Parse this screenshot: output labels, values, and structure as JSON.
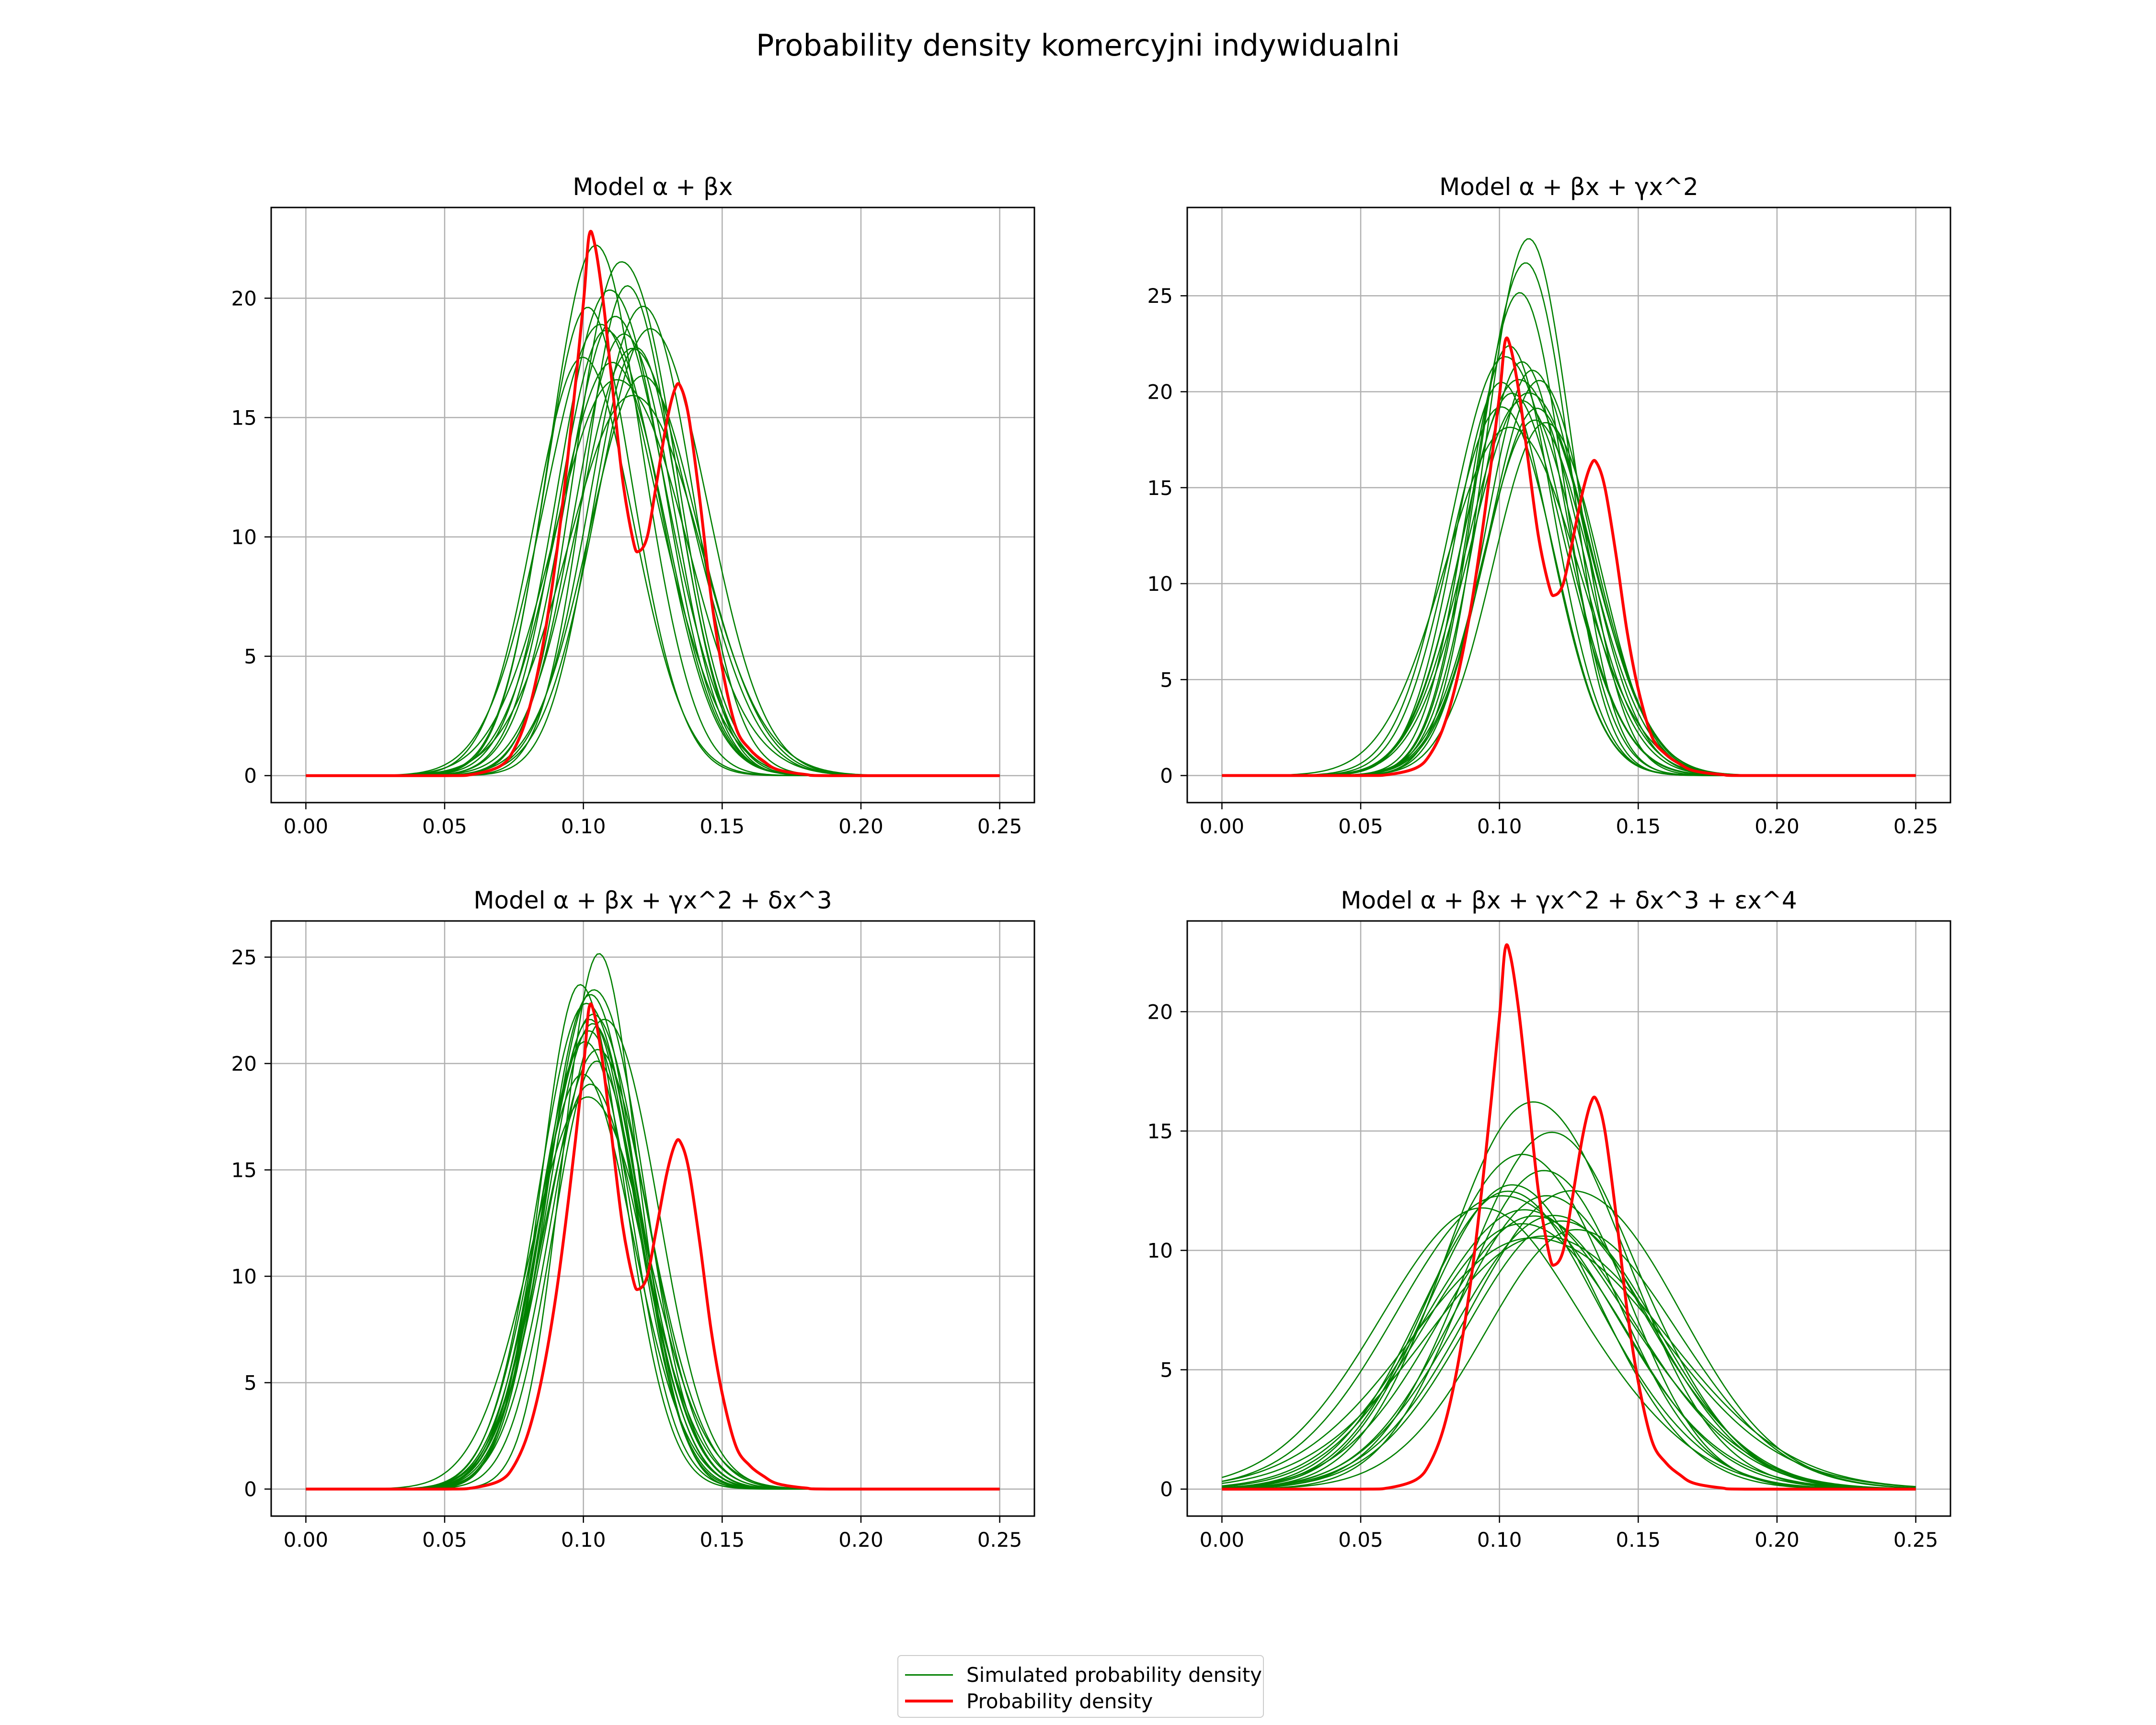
{
  "suptitle": "Probability density komercyjni indywidualni",
  "legend": {
    "entries": [
      {
        "label": "Simulated probability density",
        "color": "#008000"
      },
      {
        "label": "Probability density",
        "color": "#ff0000"
      }
    ]
  },
  "chart_data": [
    {
      "type": "line",
      "title": "Model α + βx",
      "xlim": [
        -0.0125,
        0.2625
      ],
      "ylim": [
        -1.13,
        23.8
      ],
      "xticks": [
        0.0,
        0.05,
        0.1,
        0.15,
        0.2,
        0.25
      ],
      "xtick_labels": [
        "0.00",
        "0.05",
        "0.10",
        "0.15",
        "0.20",
        "0.25"
      ],
      "yticks": [
        0,
        5,
        10,
        15,
        20
      ],
      "ytick_labels": [
        "0",
        "5",
        "10",
        "15",
        "20"
      ],
      "grid": true,
      "real_series": {
        "name": "Probability density",
        "points": [
          [
            0,
            0
          ],
          [
            0.05,
            0
          ],
          [
            0.06,
            0.05
          ],
          [
            0.07,
            0.4
          ],
          [
            0.075,
            1.1
          ],
          [
            0.08,
            2.6
          ],
          [
            0.085,
            5.2
          ],
          [
            0.09,
            9
          ],
          [
            0.095,
            14
          ],
          [
            0.1,
            19.8
          ],
          [
            0.102,
            22.6
          ],
          [
            0.104,
            22.3
          ],
          [
            0.107,
            20
          ],
          [
            0.11,
            16.8
          ],
          [
            0.114,
            12.5
          ],
          [
            0.118,
            9.8
          ],
          [
            0.12,
            9.4
          ],
          [
            0.123,
            10
          ],
          [
            0.126,
            12
          ],
          [
            0.13,
            14.8
          ],
          [
            0.133,
            16.2
          ],
          [
            0.135,
            16.3
          ],
          [
            0.138,
            15
          ],
          [
            0.142,
            11.5
          ],
          [
            0.146,
            7.5
          ],
          [
            0.15,
            4.5
          ],
          [
            0.155,
            2
          ],
          [
            0.16,
            1.1
          ],
          [
            0.165,
            0.6
          ],
          [
            0.17,
            0.25
          ],
          [
            0.18,
            0.05
          ],
          [
            0.19,
            0
          ],
          [
            0.25,
            0
          ]
        ]
      },
      "simulated_series": [
        {
          "center": 0.108,
          "sigma": 0.0185,
          "peak": 18.6
        },
        {
          "center": 0.113,
          "sigma": 0.017,
          "peak": 21.3
        },
        {
          "center": 0.118,
          "sigma": 0.019,
          "peak": 18.0
        },
        {
          "center": 0.105,
          "sigma": 0.016,
          "peak": 22.4
        },
        {
          "center": 0.121,
          "sigma": 0.0175,
          "peak": 19.5
        },
        {
          "center": 0.11,
          "sigma": 0.02,
          "peak": 17.2
        },
        {
          "center": 0.102,
          "sigma": 0.0175,
          "peak": 19.8
        },
        {
          "center": 0.116,
          "sigma": 0.0165,
          "peak": 20.6
        },
        {
          "center": 0.111,
          "sigma": 0.0215,
          "peak": 16.4
        },
        {
          "center": 0.124,
          "sigma": 0.018,
          "peak": 18.7
        },
        {
          "center": 0.107,
          "sigma": 0.0195,
          "peak": 19.1
        },
        {
          "center": 0.119,
          "sigma": 0.016,
          "peak": 17.9
        },
        {
          "center": 0.114,
          "sigma": 0.0185,
          "peak": 18.3
        },
        {
          "center": 0.1,
          "sigma": 0.019,
          "peak": 17.6
        },
        {
          "center": 0.122,
          "sigma": 0.02,
          "peak": 16.9
        },
        {
          "center": 0.109,
          "sigma": 0.017,
          "peak": 20.2
        },
        {
          "center": 0.117,
          "sigma": 0.021,
          "peak": 15.8
        },
        {
          "center": 0.112,
          "sigma": 0.0178,
          "peak": 19.4
        }
      ]
    },
    {
      "type": "line",
      "title": "Model α + βx + γx^2",
      "xlim": [
        -0.0125,
        0.2625
      ],
      "ylim": [
        -1.41,
        29.6
      ],
      "xticks": [
        0.0,
        0.05,
        0.1,
        0.15,
        0.2,
        0.25
      ],
      "xtick_labels": [
        "0.00",
        "0.05",
        "0.10",
        "0.15",
        "0.20",
        "0.25"
      ],
      "yticks": [
        0,
        5,
        10,
        15,
        20,
        25
      ],
      "ytick_labels": [
        "0",
        "5",
        "10",
        "15",
        "20",
        "25"
      ],
      "grid": true,
      "real_series": {
        "name": "Probability density",
        "points": [
          [
            0,
            0
          ],
          [
            0.05,
            0
          ],
          [
            0.06,
            0.05
          ],
          [
            0.07,
            0.4
          ],
          [
            0.075,
            1.1
          ],
          [
            0.08,
            2.6
          ],
          [
            0.085,
            5.2
          ],
          [
            0.09,
            9
          ],
          [
            0.095,
            14
          ],
          [
            0.1,
            19.8
          ],
          [
            0.102,
            22.6
          ],
          [
            0.104,
            22.3
          ],
          [
            0.107,
            20
          ],
          [
            0.11,
            16.8
          ],
          [
            0.114,
            12.5
          ],
          [
            0.118,
            9.8
          ],
          [
            0.12,
            9.4
          ],
          [
            0.123,
            10
          ],
          [
            0.126,
            12
          ],
          [
            0.13,
            14.8
          ],
          [
            0.133,
            16.2
          ],
          [
            0.135,
            16.3
          ],
          [
            0.138,
            15
          ],
          [
            0.142,
            11.5
          ],
          [
            0.146,
            7.5
          ],
          [
            0.15,
            4.5
          ],
          [
            0.155,
            2
          ],
          [
            0.16,
            1.1
          ],
          [
            0.165,
            0.6
          ],
          [
            0.17,
            0.25
          ],
          [
            0.18,
            0.05
          ],
          [
            0.19,
            0
          ],
          [
            0.25,
            0
          ]
        ]
      },
      "simulated_series": [
        {
          "center": 0.111,
          "sigma": 0.015,
          "peak": 28.2
        },
        {
          "center": 0.109,
          "sigma": 0.0158,
          "peak": 26.5
        },
        {
          "center": 0.107,
          "sigma": 0.0165,
          "peak": 25.0
        },
        {
          "center": 0.104,
          "sigma": 0.0172,
          "peak": 22.6
        },
        {
          "center": 0.112,
          "sigma": 0.018,
          "peak": 21.2
        },
        {
          "center": 0.106,
          "sigma": 0.019,
          "peak": 20.4
        },
        {
          "center": 0.102,
          "sigma": 0.0182,
          "peak": 21.8
        },
        {
          "center": 0.115,
          "sigma": 0.0176,
          "peak": 20.8
        },
        {
          "center": 0.108,
          "sigma": 0.02,
          "peak": 19.5
        },
        {
          "center": 0.1,
          "sigma": 0.0195,
          "peak": 19.0
        },
        {
          "center": 0.113,
          "sigma": 0.0205,
          "peak": 18.6
        },
        {
          "center": 0.105,
          "sigma": 0.0188,
          "peak": 20.1
        },
        {
          "center": 0.11,
          "sigma": 0.0192,
          "peak": 19.8
        },
        {
          "center": 0.103,
          "sigma": 0.021,
          "peak": 18.0
        },
        {
          "center": 0.114,
          "sigma": 0.0185,
          "peak": 19.3
        },
        {
          "center": 0.101,
          "sigma": 0.0178,
          "peak": 20.6
        },
        {
          "center": 0.116,
          "sigma": 0.0198,
          "peak": 18.2
        },
        {
          "center": 0.108,
          "sigma": 0.017,
          "peak": 21.5
        }
      ]
    },
    {
      "type": "line",
      "title": "Model α + βx + γx^2 + δx^3",
      "xlim": [
        -0.0125,
        0.2625
      ],
      "ylim": [
        -1.27,
        26.7
      ],
      "xticks": [
        0.0,
        0.05,
        0.1,
        0.15,
        0.2,
        0.25
      ],
      "xtick_labels": [
        "0.00",
        "0.05",
        "0.10",
        "0.15",
        "0.20",
        "0.25"
      ],
      "yticks": [
        0,
        5,
        10,
        15,
        20,
        25
      ],
      "ytick_labels": [
        "0",
        "5",
        "10",
        "15",
        "20",
        "25"
      ],
      "grid": true,
      "real_series": {
        "name": "Probability density",
        "points": [
          [
            0,
            0
          ],
          [
            0.05,
            0
          ],
          [
            0.06,
            0.05
          ],
          [
            0.07,
            0.4
          ],
          [
            0.075,
            1.1
          ],
          [
            0.08,
            2.6
          ],
          [
            0.085,
            5.2
          ],
          [
            0.09,
            9
          ],
          [
            0.095,
            14
          ],
          [
            0.1,
            19.8
          ],
          [
            0.102,
            22.6
          ],
          [
            0.104,
            22.3
          ],
          [
            0.107,
            20
          ],
          [
            0.11,
            16.8
          ],
          [
            0.114,
            12.5
          ],
          [
            0.118,
            9.8
          ],
          [
            0.12,
            9.4
          ],
          [
            0.123,
            10
          ],
          [
            0.126,
            12
          ],
          [
            0.13,
            14.8
          ],
          [
            0.133,
            16.2
          ],
          [
            0.135,
            16.3
          ],
          [
            0.138,
            15
          ],
          [
            0.142,
            11.5
          ],
          [
            0.146,
            7.5
          ],
          [
            0.15,
            4.5
          ],
          [
            0.155,
            2
          ],
          [
            0.16,
            1.1
          ],
          [
            0.165,
            0.6
          ],
          [
            0.17,
            0.25
          ],
          [
            0.18,
            0.05
          ],
          [
            0.19,
            0
          ],
          [
            0.25,
            0
          ]
        ]
      },
      "simulated_series": [
        {
          "center": 0.106,
          "sigma": 0.0148,
          "peak": 25.4
        },
        {
          "center": 0.099,
          "sigma": 0.0152,
          "peak": 23.8
        },
        {
          "center": 0.103,
          "sigma": 0.0158,
          "peak": 23.2
        },
        {
          "center": 0.101,
          "sigma": 0.0162,
          "peak": 22.8
        },
        {
          "center": 0.104,
          "sigma": 0.016,
          "peak": 22.1
        },
        {
          "center": 0.102,
          "sigma": 0.0168,
          "peak": 21.5
        },
        {
          "center": 0.1,
          "sigma": 0.0175,
          "peak": 20.8
        },
        {
          "center": 0.105,
          "sigma": 0.017,
          "peak": 20.2
        },
        {
          "center": 0.103,
          "sigma": 0.0182,
          "peak": 19.2
        },
        {
          "center": 0.101,
          "sigma": 0.019,
          "peak": 18.3
        },
        {
          "center": 0.107,
          "sigma": 0.0165,
          "peak": 21.9
        },
        {
          "center": 0.104,
          "sigma": 0.0178,
          "peak": 22.5
        },
        {
          "center": 0.1,
          "sigma": 0.0185,
          "peak": 19.6
        },
        {
          "center": 0.102,
          "sigma": 0.0172,
          "peak": 23.0
        },
        {
          "center": 0.105,
          "sigma": 0.0188,
          "peak": 20.6
        },
        {
          "center": 0.103,
          "sigma": 0.0163,
          "peak": 22.3
        }
      ]
    },
    {
      "type": "line",
      "title": "Model α + βx + γx^2 + δx^3 + εx^4",
      "xlim": [
        -0.0125,
        0.2625
      ],
      "ylim": [
        -1.13,
        23.8
      ],
      "xticks": [
        0.0,
        0.05,
        0.1,
        0.15,
        0.2,
        0.25
      ],
      "xtick_labels": [
        "0.00",
        "0.05",
        "0.10",
        "0.15",
        "0.20",
        "0.25"
      ],
      "yticks": [
        0,
        5,
        10,
        15,
        20
      ],
      "ytick_labels": [
        "0",
        "5",
        "10",
        "15",
        "20"
      ],
      "grid": true,
      "real_series": {
        "name": "Probability density",
        "points": [
          [
            0,
            0
          ],
          [
            0.05,
            0
          ],
          [
            0.06,
            0.05
          ],
          [
            0.07,
            0.4
          ],
          [
            0.075,
            1.1
          ],
          [
            0.08,
            2.6
          ],
          [
            0.085,
            5.2
          ],
          [
            0.09,
            9
          ],
          [
            0.095,
            14
          ],
          [
            0.1,
            19.8
          ],
          [
            0.102,
            22.6
          ],
          [
            0.104,
            22.3
          ],
          [
            0.107,
            20
          ],
          [
            0.11,
            16.8
          ],
          [
            0.114,
            12.5
          ],
          [
            0.118,
            9.8
          ],
          [
            0.12,
            9.4
          ],
          [
            0.123,
            10
          ],
          [
            0.126,
            12
          ],
          [
            0.13,
            14.8
          ],
          [
            0.133,
            16.2
          ],
          [
            0.135,
            16.3
          ],
          [
            0.138,
            15
          ],
          [
            0.142,
            11.5
          ],
          [
            0.146,
            7.5
          ],
          [
            0.15,
            4.5
          ],
          [
            0.155,
            2
          ],
          [
            0.16,
            1.1
          ],
          [
            0.165,
            0.6
          ],
          [
            0.17,
            0.25
          ],
          [
            0.18,
            0.05
          ],
          [
            0.19,
            0
          ],
          [
            0.25,
            0
          ]
        ]
      },
      "simulated_series": [
        {
          "center": 0.112,
          "sigma": 0.029,
          "peak": 16.2
        },
        {
          "center": 0.12,
          "sigma": 0.03,
          "peak": 15.1
        },
        {
          "center": 0.108,
          "sigma": 0.032,
          "peak": 14.0
        },
        {
          "center": 0.115,
          "sigma": 0.031,
          "peak": 13.2
        },
        {
          "center": 0.105,
          "sigma": 0.033,
          "peak": 12.8
        },
        {
          "center": 0.118,
          "sigma": 0.034,
          "peak": 12.4
        },
        {
          "center": 0.1,
          "sigma": 0.035,
          "peak": 12.2
        },
        {
          "center": 0.125,
          "sigma": 0.033,
          "peak": 12.4
        },
        {
          "center": 0.11,
          "sigma": 0.036,
          "peak": 11.8
        },
        {
          "center": 0.113,
          "sigma": 0.037,
          "peak": 11.5
        },
        {
          "center": 0.107,
          "sigma": 0.038,
          "peak": 11.0
        },
        {
          "center": 0.122,
          "sigma": 0.035,
          "peak": 11.2
        },
        {
          "center": 0.095,
          "sigma": 0.036,
          "peak": 11.9
        },
        {
          "center": 0.116,
          "sigma": 0.039,
          "peak": 10.6
        },
        {
          "center": 0.11,
          "sigma": 0.04,
          "peak": 10.4
        },
        {
          "center": 0.128,
          "sigma": 0.034,
          "peak": 10.9
        },
        {
          "center": 0.104,
          "sigma": 0.0345,
          "peak": 12.6
        },
        {
          "center": 0.119,
          "sigma": 0.0365,
          "peak": 11.4
        }
      ]
    }
  ]
}
